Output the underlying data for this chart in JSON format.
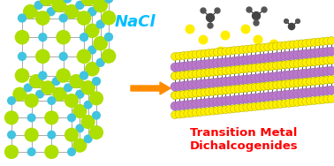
{
  "background_color": "#ffffff",
  "nacl_text": "NaCl",
  "nacl_color": "#00bfff",
  "nacl_fontsize": 13,
  "tmd_text": "Transition Metal\nDichalcogenides",
  "tmd_color": "#ff0000",
  "tmd_fontsize": 9.5,
  "arrow_color": "#ff8c00",
  "large_atom_color": "#addf00",
  "small_atom_color": "#40c4e0",
  "bond_color": "#aaaaaa",
  "yellow_atom_color": "#ffee00",
  "dark_atom_color": "#444444",
  "layer_purple_color": "#bb77cc",
  "layer_yellow_color": "#ffee00",
  "layer_black_color": "#111111",
  "figsize": [
    3.78,
    1.88
  ],
  "dpi": 100
}
